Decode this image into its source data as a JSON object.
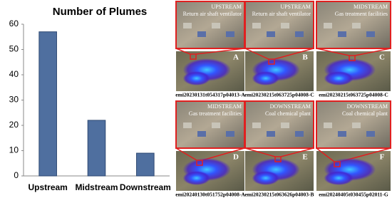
{
  "chart_data": {
    "type": "bar",
    "title": "Number of Plumes",
    "categories": [
      "Upstream",
      "Midstream",
      "Downstream"
    ],
    "values": [
      57,
      22,
      9
    ],
    "color": "#4f6f9f",
    "ylim": [
      0,
      60
    ],
    "yticks": [
      0,
      10,
      20,
      30,
      40,
      50,
      60
    ],
    "grid": false
  },
  "panels": [
    {
      "stage": "UPSTREAM",
      "facility": "Return air shaft ventilator",
      "letter": "A",
      "caption": "emi20230131t054317p04013-A"
    },
    {
      "stage": "UPSTREAM",
      "facility": "Return air shaft ventilator",
      "letter": "B",
      "caption": "emi20230215t063725p04008-C"
    },
    {
      "stage": "MIDSTREAM",
      "facility": "Gas treatment facilities",
      "letter": "C",
      "caption": "emi20230215t063725p04008-C"
    },
    {
      "stage": "MIDSTREAM",
      "facility": "Gas treatment facilities",
      "letter": "D",
      "caption": "emi20240130t051752p04008-A"
    },
    {
      "stage": "DOWNSTREAM",
      "facility": "Coal chemical plant",
      "letter": "E",
      "caption": "emi20230215t063626p04003-B"
    },
    {
      "stage": "DOWNSTREAM",
      "facility": "Coal chemical plant",
      "letter": "F",
      "caption": "emi20240405t030455p02011-G"
    }
  ]
}
